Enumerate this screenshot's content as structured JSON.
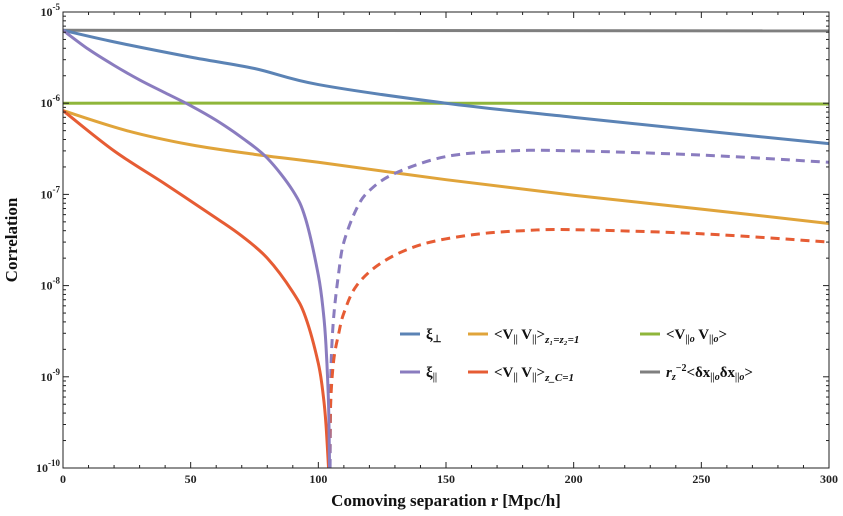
{
  "chart_data": {
    "type": "line",
    "title": "",
    "xlabel": "Comoving separation r [Mpc/h]",
    "ylabel": "Correlation",
    "xlim": [
      0,
      300
    ],
    "ylim": [
      1e-10,
      1e-05
    ],
    "yscale": "log",
    "grid": false,
    "legend_position": "bottom-right",
    "x_ticks": [
      {
        "value": 0,
        "label": "0"
      },
      {
        "value": 50,
        "label": "50"
      },
      {
        "value": 100,
        "label": "100"
      },
      {
        "value": 150,
        "label": "150"
      },
      {
        "value": 200,
        "label": "200"
      },
      {
        "value": 250,
        "label": "250"
      },
      {
        "value": 300,
        "label": "300"
      }
    ],
    "y_ticks": [
      {
        "value": 1e-10,
        "base": "10",
        "exp": "-10"
      },
      {
        "value": 1e-09,
        "base": "10",
        "exp": "-9"
      },
      {
        "value": 1e-08,
        "base": "10",
        "exp": "-8"
      },
      {
        "value": 1e-07,
        "base": "10",
        "exp": "-7"
      },
      {
        "value": 1e-06,
        "base": "10",
        "exp": "-6"
      },
      {
        "value": 1e-05,
        "base": "10",
        "exp": "-5"
      }
    ],
    "series": [
      {
        "id": "xi-perp",
        "color": "#5b83b5",
        "dash": false,
        "legend_html": "ξ<tspan font-size='10' dy='3'>⊥</tspan>",
        "points": [
          [
            0,
            6.3e-06
          ],
          [
            20,
            4.7e-06
          ],
          [
            50,
            3.2e-06
          ],
          [
            75,
            2.4e-06
          ],
          [
            100,
            1.6e-06
          ],
          [
            150,
            1e-06
          ],
          [
            200,
            7e-07
          ],
          [
            250,
            5e-07
          ],
          [
            300,
            3.6e-07
          ]
        ]
      },
      {
        "id": "xi-par-positive",
        "color": "#8a7cbf",
        "dash": false,
        "legend_html": "ξ<tspan font-size='10' dy='3'>||</tspan>",
        "points": [
          [
            0,
            6.3e-06
          ],
          [
            10,
            3.9e-06
          ],
          [
            20,
            2.6e-06
          ],
          [
            30,
            1.8e-06
          ],
          [
            40,
            1.3e-06
          ],
          [
            50,
            9.4e-07
          ],
          [
            60,
            6.5e-07
          ],
          [
            70,
            4.2e-07
          ],
          [
            80,
            2.5e-07
          ],
          [
            90,
            1.1e-07
          ],
          [
            95,
            5.4e-08
          ],
          [
            100,
            1.3e-08
          ],
          [
            102,
            5e-09
          ],
          [
            103,
            2.2e-09
          ],
          [
            104,
            5e-10
          ],
          [
            104.4,
            1e-10
          ]
        ]
      },
      {
        "id": "xi-par-negative",
        "color": "#8a7cbf",
        "dash": true,
        "points": [
          [
            104.6,
            1e-10
          ],
          [
            104.8,
            5e-10
          ],
          [
            105,
            1.4e-09
          ],
          [
            106,
            4.5e-09
          ],
          [
            108,
            1.4e-08
          ],
          [
            110,
            3e-08
          ],
          [
            115,
            7e-08
          ],
          [
            120,
            1.1e-07
          ],
          [
            130,
            1.7e-07
          ],
          [
            150,
            2.6e-07
          ],
          [
            175,
            3e-07
          ],
          [
            200,
            3e-07
          ],
          [
            250,
            2.7e-07
          ],
          [
            300,
            2.25e-07
          ]
        ]
      },
      {
        "id": "vv-z1z2",
        "color": "#e0a43a",
        "dash": false,
        "legend_html": "&lt;V<tspan font-size='10' dy='3'>||</tspan><tspan dy='-3'> V</tspan><tspan font-size='10' dy='3'>||</tspan><tspan dy='-3'>&gt;</tspan><tspan font-size='11' font-style='italic' dy='4'>z₁=z₂=1</tspan>",
        "points": [
          [
            0,
            8.3e-07
          ],
          [
            25,
            5e-07
          ],
          [
            50,
            3.5e-07
          ],
          [
            75,
            2.75e-07
          ],
          [
            100,
            2.25e-07
          ],
          [
            150,
            1.45e-07
          ],
          [
            200,
            9.8e-08
          ],
          [
            250,
            6.9e-08
          ],
          [
            300,
            4.8e-08
          ]
        ]
      },
      {
        "id": "vv-zc-positive",
        "color": "#e65c34",
        "dash": false,
        "legend_html": "&lt;V<tspan font-size='10' dy='3'>||</tspan><tspan dy='-3'> V</tspan><tspan font-size='10' dy='3'>||</tspan><tspan dy='-3'>&gt;</tspan><tspan font-size='11' font-style='italic' dy='4'>z_C=1</tspan>",
        "points": [
          [
            0,
            8.3e-07
          ],
          [
            20,
            3e-07
          ],
          [
            40,
            1.3e-07
          ],
          [
            60,
            5.5e-08
          ],
          [
            70,
            3.5e-08
          ],
          [
            80,
            2e-08
          ],
          [
            90,
            8.5e-09
          ],
          [
            95,
            4.5e-09
          ],
          [
            100,
            1.4e-09
          ],
          [
            102,
            6e-10
          ],
          [
            103,
            3e-10
          ],
          [
            104,
            1e-10
          ]
        ]
      },
      {
        "id": "vv-zc-negative",
        "color": "#e65c34",
        "dash": true,
        "points": [
          [
            104.3,
            1e-10
          ],
          [
            104.8,
            5e-10
          ],
          [
            106,
            1.5e-09
          ],
          [
            108,
            3e-09
          ],
          [
            110,
            5e-09
          ],
          [
            115,
            1e-08
          ],
          [
            125,
            1.8e-08
          ],
          [
            140,
            2.8e-08
          ],
          [
            160,
            3.6e-08
          ],
          [
            180,
            4e-08
          ],
          [
            200,
            4.1e-08
          ],
          [
            250,
            3.7e-08
          ],
          [
            300,
            3e-08
          ]
        ]
      },
      {
        "id": "vo-vo",
        "color": "#8fb63a",
        "dash": false,
        "legend_html": "&lt;V<tspan font-size='10' font-style='italic' dy='3'>||o</tspan><tspan dy='-3'> V</tspan><tspan font-size='10' font-style='italic' dy='3'>||o</tspan><tspan dy='-3'>&gt;</tspan>",
        "points": [
          [
            0,
            1e-06
          ],
          [
            150,
            1e-06
          ],
          [
            300,
            9.8e-07
          ]
        ]
      },
      {
        "id": "dx-dx",
        "color": "#7f7f7f",
        "dash": false,
        "legend_html": "<tspan font-style='italic'>r</tspan><tspan font-size='10' font-style='italic' dy='3'>z</tspan><tspan font-size='10' dy='-9'>−2</tspan><tspan dy='6'>&lt;δx</tspan><tspan font-size='10' font-style='italic' dy='3'>||o</tspan><tspan dy='-3'>δx</tspan><tspan font-size='10' font-style='italic' dy='3'>||o</tspan><tspan dy='-3'>&gt;</tspan>",
        "points": [
          [
            0,
            6.3e-06
          ],
          [
            300,
            6.2e-06
          ]
        ]
      }
    ],
    "legend": [
      {
        "series": "xi-perp",
        "label": "ξ⊥"
      },
      {
        "series": "vv-z1z2",
        "label": "<V|| V||>z1=z2=1"
      },
      {
        "series": "vo-vo",
        "label": "<V||o V||o>"
      },
      {
        "series": "xi-par-positive",
        "label": "ξ||"
      },
      {
        "series": "vv-zc-positive",
        "label": "<V|| V||>zC=1"
      },
      {
        "series": "dx-dx",
        "label": "rz−2<δx||oδx||o>"
      }
    ]
  }
}
